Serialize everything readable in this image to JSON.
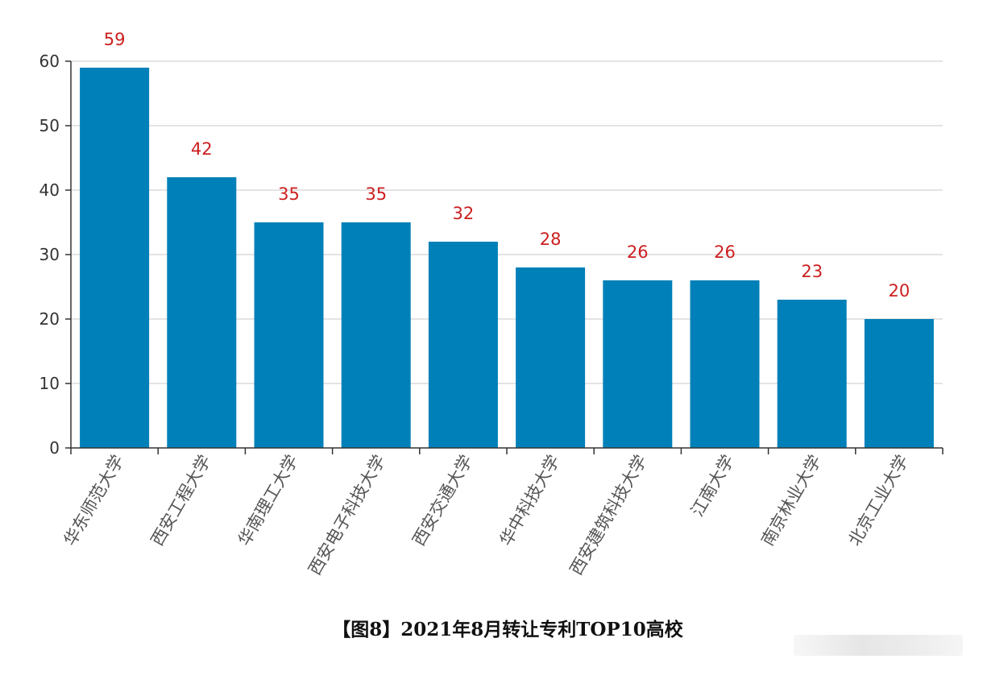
{
  "chart_data": {
    "type": "bar",
    "categories": [
      "华东师范大学",
      "西安工程大学",
      "华南理工大学",
      "西安电子科技大学",
      "西安交通大学",
      "华中科技大学",
      "西安建筑科技大学",
      "江南大学",
      "南京林业大学",
      "北京工业大学"
    ],
    "values": [
      59,
      42,
      35,
      35,
      32,
      28,
      26,
      26,
      23,
      20
    ],
    "yticks": [
      "0",
      "10",
      "20",
      "30",
      "40",
      "50",
      "60"
    ],
    "ylim": [
      0,
      60
    ],
    "grid": true,
    "bar_color": "#0080B8",
    "label_color": "#CC1F1F",
    "axis_color": "#333333",
    "grid_color": "#C8C8C8"
  },
  "caption": "【图8】2021年8月转让专利TOP10高校"
}
